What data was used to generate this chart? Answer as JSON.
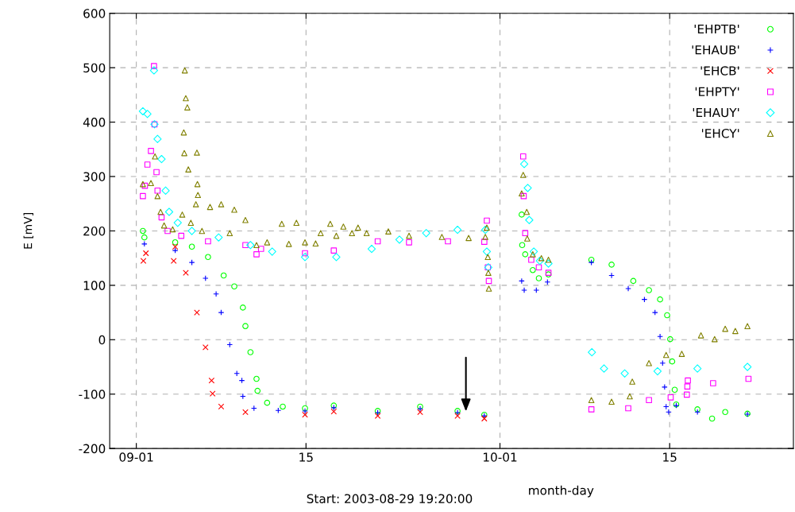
{
  "chart_data": {
    "type": "scatter",
    "xlabel": "month-day",
    "ylabel": "E [mV]",
    "annotations": [
      "Start: 2003-08-29 19:20:00"
    ],
    "xlim": [
      "2003-08-29T19:20",
      "2003-10-25T05:00"
    ],
    "xticks": [
      {
        "value": "2003-09-01",
        "label": "09-01"
      },
      {
        "value": "2003-09-15",
        "label": "15"
      },
      {
        "value": "2003-10-01",
        "label": "10-01"
      },
      {
        "value": "2003-10-15",
        "label": "15"
      }
    ],
    "ylim": [
      -200,
      600
    ],
    "yticks": [
      -200,
      -100,
      0,
      100,
      200,
      300,
      400,
      500,
      600
    ],
    "grid": true,
    "legend": "top right",
    "series": [
      {
        "name": "'EHPTB'",
        "color": "#00ff00",
        "marker": "circle",
        "x": [
          "2003-09-01T13:00",
          "2003-09-01T16:00",
          "2003-09-04T05:00",
          "2003-09-05T14:00",
          "2003-09-06T22:00",
          "2003-09-08T05:00",
          "2003-09-09T02:00",
          "2003-09-09T19:00",
          "2003-09-10T00:00",
          "2003-09-10T10:00",
          "2003-09-10T22:00",
          "2003-09-11T00:00",
          "2003-09-11T19:00",
          "2003-09-13T02:00",
          "2003-09-14T22:00",
          "2003-09-17T07:00",
          "2003-09-20T22:00",
          "2003-09-24T10:00",
          "2003-09-27T12:00",
          "2003-09-29T17:00",
          "2003-10-02T19:00",
          "2003-10-02T20:00",
          "2003-10-03T02:00",
          "2003-10-03T17:00",
          "2003-10-04T05:00",
          "2003-10-05T00:00",
          "2003-10-08T13:00",
          "2003-10-10T05:00",
          "2003-10-12T00:00",
          "2003-10-13T07:00",
          "2003-10-14T05:00",
          "2003-10-14T19:00",
          "2003-10-15T01:00",
          "2003-10-15T05:00",
          "2003-10-15T10:00",
          "2003-10-15T13:00",
          "2003-10-17T07:00",
          "2003-10-18T12:00",
          "2003-10-19T14:00",
          "2003-10-21T10:00"
        ],
        "values": [
          200,
          188,
          179,
          171,
          152,
          118,
          98,
          59,
          25,
          -23,
          -72,
          -94,
          -116,
          -123,
          -126,
          -121,
          -131,
          -123,
          -131,
          -138,
          230,
          174,
          157,
          128,
          113,
          120,
          147,
          138,
          108,
          91,
          74,
          45,
          1,
          -40,
          -92,
          -119,
          -128,
          -145,
          -133,
          -136
        ]
      },
      {
        "name": "'EHAUB'",
        "color": "#0000ff",
        "marker": "cross",
        "x": [
          "2003-09-01T16:00",
          "2003-09-04T05:00",
          "2003-09-05T14:00",
          "2003-09-06T17:00",
          "2003-09-07T14:00",
          "2003-09-08T00:00",
          "2003-09-08T17:00",
          "2003-09-09T07:00",
          "2003-09-09T17:00",
          "2003-09-09T19:00",
          "2003-09-10T17:00",
          "2003-09-12T17:00",
          "2003-09-14T22:00",
          "2003-09-17T07:00",
          "2003-09-20T22:00",
          "2003-09-24T10:00",
          "2003-09-27T12:00",
          "2003-09-29T17:00",
          "2003-10-02T19:00",
          "2003-10-03T00:00",
          "2003-10-04T00:00",
          "2003-10-04T22:00",
          "2003-10-08T13:00",
          "2003-10-10T05:00",
          "2003-10-11T14:00",
          "2003-10-12T22:00",
          "2003-10-13T19:00",
          "2003-10-14T05:00",
          "2003-10-14T10:00",
          "2003-10-14T14:00",
          "2003-10-14T17:00",
          "2003-10-14T22:00",
          "2003-10-15T13:00",
          "2003-10-17T07:00",
          "2003-10-21T10:00"
        ],
        "values": [
          176,
          164,
          142,
          113,
          84,
          50,
          -9,
          -62,
          -75,
          -104,
          -126,
          -130,
          -131,
          -125,
          -134,
          -127,
          -134,
          -140,
          108,
          91,
          91,
          106,
          142,
          118,
          94,
          74,
          50,
          6,
          -43,
          -87,
          -123,
          -133,
          -121,
          -133,
          -137
        ]
      },
      {
        "name": "'EHCB'",
        "color": "#ff0000",
        "marker": "x",
        "x": [
          "2003-09-01T14:00",
          "2003-09-01T19:00",
          "2003-09-04T02:00",
          "2003-09-04T05:00",
          "2003-09-05T02:00",
          "2003-09-06T00:00",
          "2003-09-06T17:00",
          "2003-09-07T05:00",
          "2003-09-07T07:00",
          "2003-09-08T00:00",
          "2003-09-10T00:00",
          "2003-09-14T22:00",
          "2003-09-17T07:00",
          "2003-09-20T22:00",
          "2003-09-24T10:00",
          "2003-09-27T12:00",
          "2003-09-29T17:00"
        ],
        "values": [
          145,
          159,
          145,
          171,
          123,
          50,
          -14,
          -75,
          -99,
          -123,
          -133,
          -138,
          -132,
          -140,
          -133,
          -140,
          -145
        ]
      },
      {
        "name": "'EHPTY'",
        "color": "#ff00ff",
        "marker": "square",
        "x": [
          "2003-09-01T13:00",
          "2003-09-01T17:00",
          "2003-09-01T22:00",
          "2003-09-02T05:00",
          "2003-09-02T11:00",
          "2003-09-02T12:00",
          "2003-09-02T16:00",
          "2003-09-02T18:00",
          "2003-09-03T02:00",
          "2003-09-03T14:00",
          "2003-09-04T17:00",
          "2003-09-06T22:00",
          "2003-09-10T00:00",
          "2003-09-10T22:00",
          "2003-09-11T07:00",
          "2003-09-14T22:00",
          "2003-09-17T07:00",
          "2003-09-20T22:00",
          "2003-09-23T12:00",
          "2003-09-26T17:00",
          "2003-09-29T17:00",
          "2003-09-29T22:00",
          "2003-09-30T00:00",
          "2003-09-30T02:00",
          "2003-10-02T22:00",
          "2003-10-02T23:00",
          "2003-10-03T02:00",
          "2003-10-03T14:00",
          "2003-10-04T05:00",
          "2003-10-05T00:00",
          "2003-10-08T13:00",
          "2003-10-11T14:00",
          "2003-10-13T07:00",
          "2003-10-15T02:00",
          "2003-10-16T10:00",
          "2003-10-16T11:00",
          "2003-10-16T12:00",
          "2003-10-18T14:00",
          "2003-10-21T12:00"
        ],
        "values": [
          264,
          283,
          322,
          347,
          503,
          396,
          308,
          274,
          225,
          200,
          191,
          181,
          174,
          157,
          167,
          159,
          164,
          181,
          179,
          181,
          180,
          219,
          133,
          108,
          337,
          264,
          196,
          147,
          133,
          123,
          -128,
          -126,
          -111,
          -106,
          -101,
          -86,
          -75,
          -80,
          -72
        ]
      },
      {
        "name": "'EHAUY'",
        "color": "#00ffff",
        "marker": "diamond",
        "x": [
          "2003-09-01T13:00",
          "2003-09-01T22:00",
          "2003-09-02T11:00",
          "2003-09-02T12:00",
          "2003-09-02T18:00",
          "2003-09-03T02:00",
          "2003-09-03T10:00",
          "2003-09-03T17:00",
          "2003-09-04T10:00",
          "2003-09-05T14:00",
          "2003-09-07T19:00",
          "2003-09-10T10:00",
          "2003-09-12T05:00",
          "2003-09-14T22:00",
          "2003-09-17T12:00",
          "2003-09-20T10:00",
          "2003-09-22T17:00",
          "2003-09-24T22:00",
          "2003-09-27T12:00",
          "2003-09-29T19:00",
          "2003-09-29T22:00",
          "2003-09-30T01:00",
          "2003-10-03T00:00",
          "2003-10-03T07:00",
          "2003-10-03T10:00",
          "2003-10-03T19:00",
          "2003-10-04T07:00",
          "2003-10-05T00:00",
          "2003-10-08T14:00",
          "2003-10-09T14:00",
          "2003-10-11T07:00",
          "2003-10-14T00:00",
          "2003-10-17T07:00",
          "2003-10-21T10:00"
        ],
        "values": [
          420,
          415,
          495,
          396,
          369,
          332,
          274,
          235,
          215,
          200,
          188,
          174,
          162,
          152,
          152,
          167,
          184,
          196,
          202,
          202,
          162,
          133,
          323,
          279,
          220,
          162,
          145,
          140,
          -23,
          -53,
          -62,
          -58,
          -53,
          -50
        ]
      },
      {
        "name": "'EHCY'",
        "color": "#808000",
        "marker": "triangle",
        "x": [
          "2003-09-01T13:00",
          "2003-09-02T05:00",
          "2003-09-02T13:00",
          "2003-09-02T18:00",
          "2003-09-03T00:00",
          "2003-09-03T07:00",
          "2003-09-04T00:00",
          "2003-09-04T19:00",
          "2003-09-04T22:00",
          "2003-09-04T23:00",
          "2003-09-05T00:00",
          "2003-09-05T02:00",
          "2003-09-05T05:00",
          "2003-09-05T07:00",
          "2003-09-05T12:00",
          "2003-09-05T22:00",
          "2003-09-06T00:00",
          "2003-09-06T01:00",
          "2003-09-06T02:00",
          "2003-09-06T10:00",
          "2003-09-07T02:00",
          "2003-09-08T00:00",
          "2003-09-08T17:00",
          "2003-09-09T02:00",
          "2003-09-10T00:00",
          "2003-09-10T22:00",
          "2003-09-11T19:00",
          "2003-09-13T00:00",
          "2003-09-13T14:00",
          "2003-09-14T05:00",
          "2003-09-14T22:00",
          "2003-09-15T19:00",
          "2003-09-16T05:00",
          "2003-09-17T00:00",
          "2003-09-17T12:00",
          "2003-09-18T02:00",
          "2003-09-18T19:00",
          "2003-09-19T07:00",
          "2003-09-20T00:00",
          "2003-09-21T19:00",
          "2003-09-23T12:00",
          "2003-09-26T05:00",
          "2003-09-28T10:00",
          "2003-09-29T19:00",
          "2003-09-29T22:00",
          "2003-09-30T00:00",
          "2003-09-30T01:00",
          "2003-09-30T02:00",
          "2003-10-02T19:00",
          "2003-10-02T22:00",
          "2003-10-03T05:00",
          "2003-10-03T06:00",
          "2003-10-03T17:00",
          "2003-10-04T10:00",
          "2003-10-05T00:00",
          "2003-10-08T13:00",
          "2003-10-10T05:00",
          "2003-10-11T17:00",
          "2003-10-11T22:00",
          "2003-10-13T07:00",
          "2003-10-14T17:00",
          "2003-10-16T00:00",
          "2003-10-17T14:00",
          "2003-10-18T17:00",
          "2003-10-19T14:00",
          "2003-10-20T10:00",
          "2003-10-21T10:00"
        ],
        "values": [
          286,
          288,
          337,
          264,
          235,
          210,
          203,
          230,
          381,
          343,
          495,
          444,
          427,
          313,
          215,
          249,
          344,
          286,
          266,
          200,
          244,
          249,
          196,
          239,
          220,
          174,
          179,
          213,
          176,
          215,
          179,
          177,
          196,
          213,
          191,
          208,
          196,
          206,
          196,
          199,
          191,
          189,
          187,
          189,
          206,
          152,
          123,
          94,
          269,
          303,
          235,
          186,
          157,
          150,
          147,
          -111,
          -114,
          -104,
          -77,
          -43,
          -28,
          -26,
          8,
          1,
          20,
          16,
          25
        ]
      }
    ]
  }
}
